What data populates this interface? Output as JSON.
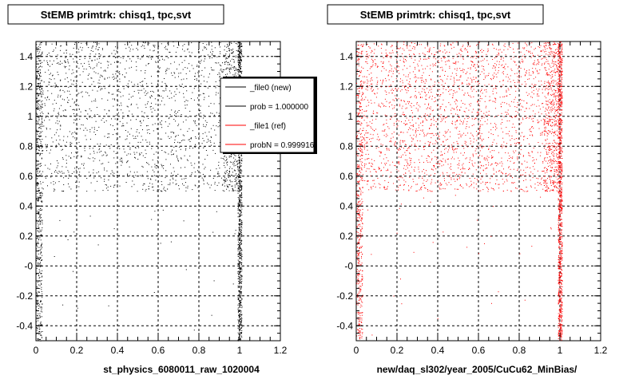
{
  "chart_data": [
    {
      "type": "scatter",
      "title": "StEMB primtrk: chisq1, tpc,svt",
      "xlabel": "st_physics_6080011_raw_1020004",
      "ylabel": "",
      "xlim": [
        0,
        1.2
      ],
      "ylim": [
        -0.5,
        1.5
      ],
      "xticks": [
        "0",
        "0.2",
        "0.4",
        "0.6",
        "0.8",
        "1",
        "1.2"
      ],
      "yticks": [
        "-0.4",
        "-0.2",
        "-0",
        "0.2",
        "0.4",
        "0.6",
        "0.8",
        "1",
        "1.2",
        "1.4"
      ],
      "grid": true,
      "legend_position": "top-right",
      "legend": [
        {
          "label": "_file0 (new)",
          "color": "#000000"
        },
        {
          "label": "prob = 1.000000",
          "color": "#000000"
        },
        {
          "label": "_file1 (ref)",
          "color": "#ff0000"
        },
        {
          "label": "probN = 0.999916",
          "color": "#ff0000"
        }
      ],
      "series": [
        {
          "color": "#000000",
          "regions": [
            {
              "x": [
                0.0,
                0.03
              ],
              "y": [
                -0.5,
                1.5
              ],
              "count": 500
            },
            {
              "x": [
                0.03,
                0.99
              ],
              "y": [
                0.5,
                1.5
              ],
              "count": 1500
            },
            {
              "x": [
                0.92,
                0.99
              ],
              "y": [
                0.5,
                1.5
              ],
              "count": 300
            },
            {
              "x": [
                0.99,
                1.01
              ],
              "y": [
                -0.5,
                1.5
              ],
              "count": 900
            },
            {
              "x": [
                0.03,
                0.99
              ],
              "y": [
                -0.5,
                0.5
              ],
              "count": 30
            }
          ]
        }
      ]
    },
    {
      "type": "scatter",
      "title": "StEMB primtrk: chisq1, tpc,svt",
      "xlabel": "new/daq_sl302/year_2005/CuCu62_MinBias/",
      "ylabel": "",
      "xlim": [
        0,
        1.2
      ],
      "ylim": [
        -0.5,
        1.5
      ],
      "xticks": [
        "0",
        "0.2",
        "0.4",
        "0.6",
        "0.8",
        "1",
        "1.2"
      ],
      "yticks": [
        "-0.4",
        "-0.2",
        "-0",
        "0.2",
        "0.4",
        "0.6",
        "0.8",
        "1",
        "1.2",
        "1.4"
      ],
      "grid": true,
      "series": [
        {
          "color": "#ff0000",
          "regions": [
            {
              "x": [
                0.0,
                0.03
              ],
              "y": [
                -0.5,
                1.5
              ],
              "count": 500
            },
            {
              "x": [
                0.03,
                0.99
              ],
              "y": [
                0.5,
                1.5
              ],
              "count": 2300
            },
            {
              "x": [
                0.92,
                0.99
              ],
              "y": [
                0.5,
                1.5
              ],
              "count": 350
            },
            {
              "x": [
                0.99,
                1.01
              ],
              "y": [
                -0.5,
                1.5
              ],
              "count": 1000
            },
            {
              "x": [
                0.03,
                0.99
              ],
              "y": [
                -0.5,
                0.5
              ],
              "count": 30
            }
          ]
        }
      ]
    }
  ]
}
